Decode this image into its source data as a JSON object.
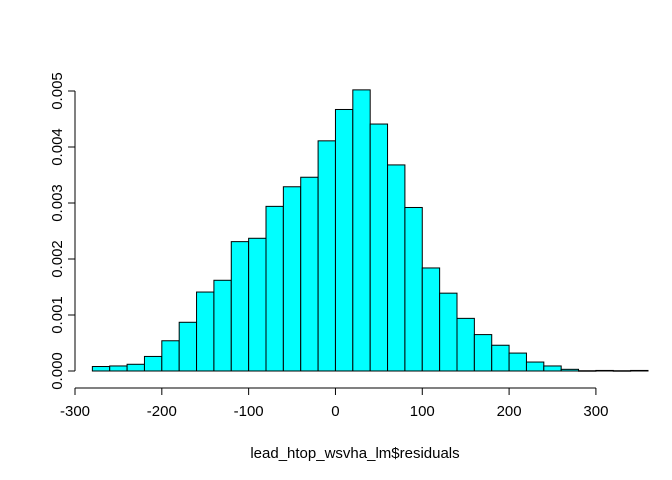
{
  "chart_data": {
    "type": "bar",
    "subtype": "histogram",
    "title": "",
    "xlabel": "lead_htop_wsvha_lm$residuals",
    "ylabel": "",
    "bin_width": 20,
    "bins": [
      {
        "start": -280,
        "end": -260,
        "density": 8e-05
      },
      {
        "start": -260,
        "end": -240,
        "density": 9e-05
      },
      {
        "start": -240,
        "end": -220,
        "density": 0.00012
      },
      {
        "start": -220,
        "end": -200,
        "density": 0.00026
      },
      {
        "start": -200,
        "end": -180,
        "density": 0.00054
      },
      {
        "start": -180,
        "end": -160,
        "density": 0.00087
      },
      {
        "start": -160,
        "end": -140,
        "density": 0.00141
      },
      {
        "start": -140,
        "end": -120,
        "density": 0.00162
      },
      {
        "start": -120,
        "end": -100,
        "density": 0.00231
      },
      {
        "start": -100,
        "end": -80,
        "density": 0.00237
      },
      {
        "start": -80,
        "end": -60,
        "density": 0.00294
      },
      {
        "start": -60,
        "end": -40,
        "density": 0.00329
      },
      {
        "start": -40,
        "end": -20,
        "density": 0.00346
      },
      {
        "start": -20,
        "end": 0,
        "density": 0.00411
      },
      {
        "start": 0,
        "end": 20,
        "density": 0.00467
      },
      {
        "start": 20,
        "end": 40,
        "density": 0.00502
      },
      {
        "start": 40,
        "end": 60,
        "density": 0.00441
      },
      {
        "start": 60,
        "end": 80,
        "density": 0.00368
      },
      {
        "start": 80,
        "end": 100,
        "density": 0.00292
      },
      {
        "start": 100,
        "end": 120,
        "density": 0.00184
      },
      {
        "start": 120,
        "end": 140,
        "density": 0.00139
      },
      {
        "start": 140,
        "end": 160,
        "density": 0.00094
      },
      {
        "start": 160,
        "end": 180,
        "density": 0.00065
      },
      {
        "start": 180,
        "end": 200,
        "density": 0.00046
      },
      {
        "start": 200,
        "end": 220,
        "density": 0.00032
      },
      {
        "start": 220,
        "end": 240,
        "density": 0.00016
      },
      {
        "start": 240,
        "end": 260,
        "density": 9e-05
      },
      {
        "start": 260,
        "end": 280,
        "density": 3e-05
      },
      {
        "start": 280,
        "end": 300,
        "density": 5e-06
      },
      {
        "start": 300,
        "end": 320,
        "density": 1e-05
      },
      {
        "start": 320,
        "end": 340,
        "density": 5e-06
      },
      {
        "start": 340,
        "end": 360,
        "density": 1e-05
      }
    ],
    "xlim": [
      -300,
      360
    ],
    "ylim": [
      0,
      0.0052
    ],
    "x_ticks": [
      {
        "value": -300,
        "label": "-300"
      },
      {
        "value": -200,
        "label": "-200"
      },
      {
        "value": -100,
        "label": "-100"
      },
      {
        "value": 0,
        "label": "0"
      },
      {
        "value": 100,
        "label": "100"
      },
      {
        "value": 200,
        "label": "200"
      },
      {
        "value": 300,
        "label": "300"
      }
    ],
    "y_ticks": [
      {
        "value": 0,
        "label": "0.000"
      },
      {
        "value": 0.001,
        "label": "0.001"
      },
      {
        "value": 0.002,
        "label": "0.002"
      },
      {
        "value": 0.003,
        "label": "0.003"
      },
      {
        "value": 0.004,
        "label": "0.004"
      },
      {
        "value": 0.005,
        "label": "0.005"
      }
    ],
    "grid": false,
    "legend": "none",
    "colors": {
      "bar_fill": "#00FFFF",
      "bar_stroke": "#000000",
      "axis": "#000000",
      "background": "#FFFFFF"
    }
  }
}
